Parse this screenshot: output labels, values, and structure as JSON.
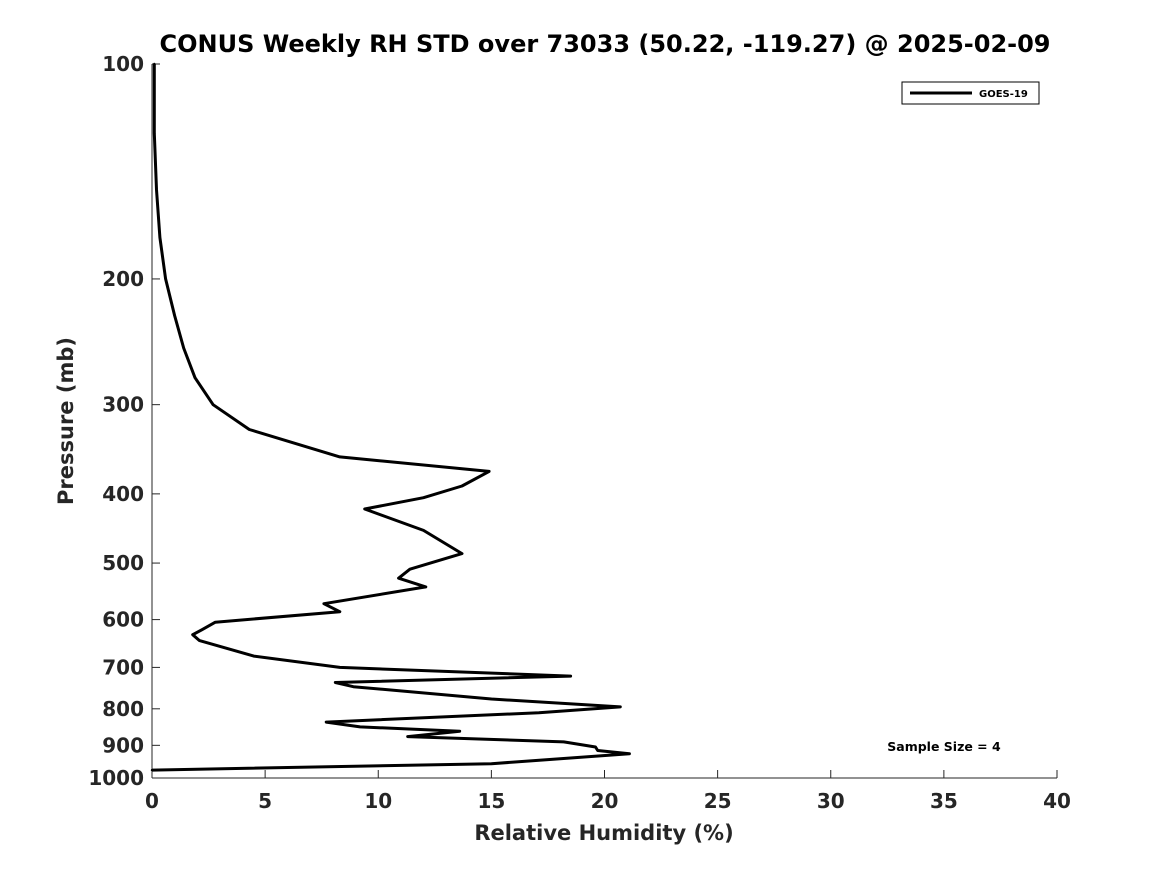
{
  "chart_data": {
    "type": "line",
    "title": "CONUS Weekly RH STD over 73033 (50.22, -119.27) @ 2025-02-09",
    "xlabel": "Relative Humidity (%)",
    "ylabel": "Pressure (mb)",
    "xlim": [
      0,
      40
    ],
    "ylim": [
      100,
      1000
    ],
    "y_scale": "log",
    "y_reversed": true,
    "x_ticks": [
      0,
      5,
      10,
      15,
      20,
      25,
      30,
      35,
      40
    ],
    "y_ticks": [
      100,
      200,
      300,
      400,
      500,
      600,
      700,
      800,
      900,
      1000
    ],
    "grid": false,
    "legend_position": "top-right",
    "annotation": "Sample Size = 4",
    "series": [
      {
        "name": "GOES-19",
        "color": "#000000",
        "points": [
          [
            0.1,
            100
          ],
          [
            0.1,
            125
          ],
          [
            0.2,
            150
          ],
          [
            0.35,
            175
          ],
          [
            0.6,
            200
          ],
          [
            1.0,
            225
          ],
          [
            1.4,
            250
          ],
          [
            1.9,
            275
          ],
          [
            2.7,
            300
          ],
          [
            4.3,
            325
          ],
          [
            8.3,
            355
          ],
          [
            14.9,
            372
          ],
          [
            13.7,
            390
          ],
          [
            12.0,
            405
          ],
          [
            9.4,
            420
          ],
          [
            12.0,
            450
          ],
          [
            13.7,
            485
          ],
          [
            11.4,
            510
          ],
          [
            10.9,
            525
          ],
          [
            12.1,
            540
          ],
          [
            7.6,
            570
          ],
          [
            8.3,
            585
          ],
          [
            2.8,
            605
          ],
          [
            2.2,
            620
          ],
          [
            1.8,
            630
          ],
          [
            2.1,
            642
          ],
          [
            4.5,
            675
          ],
          [
            8.3,
            700
          ],
          [
            18.5,
            720
          ],
          [
            8.1,
            735
          ],
          [
            8.9,
            745
          ],
          [
            15.0,
            775
          ],
          [
            20.7,
            795
          ],
          [
            17.1,
            810
          ],
          [
            7.7,
            835
          ],
          [
            9.2,
            848
          ],
          [
            13.6,
            860
          ],
          [
            11.3,
            875
          ],
          [
            18.2,
            890
          ],
          [
            19.6,
            905
          ],
          [
            19.7,
            915
          ],
          [
            21.1,
            925
          ],
          [
            15.0,
            955
          ],
          [
            0.0,
            975
          ]
        ]
      }
    ]
  }
}
